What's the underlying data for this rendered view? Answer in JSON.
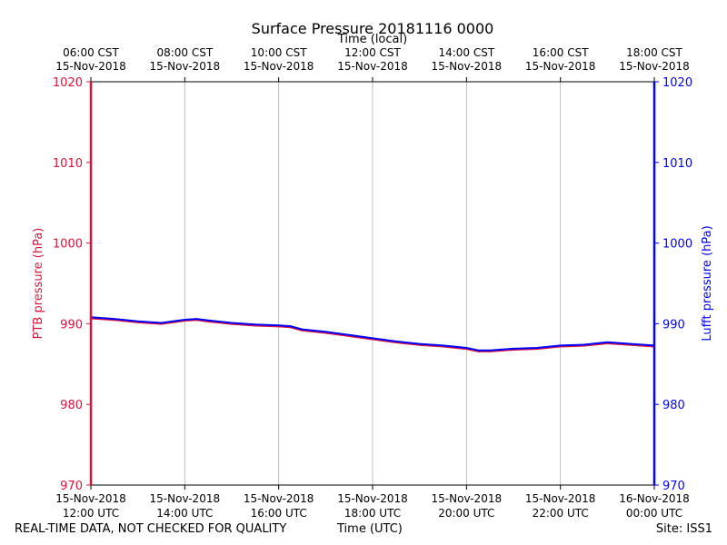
{
  "chart_data": {
    "type": "line",
    "title": "Surface Pressure 20181116 0000",
    "top_xlabel": "Time (local)",
    "xlabel": "Time (UTC)",
    "ylabel_left": "PTB pressure (hPa)",
    "ylabel_right": "Lufft pressure (hPa)",
    "ylim": [
      970,
      1020
    ],
    "xlim_hours": [
      12,
      24
    ],
    "grid": "vertical",
    "yticks": [
      970,
      980,
      990,
      1000,
      1010,
      1020
    ],
    "x_ticks_bottom": [
      {
        "hour": 12,
        "date": "15-Nov-2018",
        "time": "12:00 UTC"
      },
      {
        "hour": 14,
        "date": "15-Nov-2018",
        "time": "14:00 UTC"
      },
      {
        "hour": 16,
        "date": "15-Nov-2018",
        "time": "16:00 UTC"
      },
      {
        "hour": 18,
        "date": "15-Nov-2018",
        "time": "18:00 UTC"
      },
      {
        "hour": 20,
        "date": "15-Nov-2018",
        "time": "20:00 UTC"
      },
      {
        "hour": 22,
        "date": "15-Nov-2018",
        "time": "22:00 UTC"
      },
      {
        "hour": 24,
        "date": "16-Nov-2018",
        "time": "00:00 UTC"
      }
    ],
    "x_ticks_top": [
      {
        "hour": 12,
        "time": "06:00 CST",
        "date": "15-Nov-2018"
      },
      {
        "hour": 14,
        "time": "08:00 CST",
        "date": "15-Nov-2018"
      },
      {
        "hour": 16,
        "time": "10:00 CST",
        "date": "15-Nov-2018"
      },
      {
        "hour": 18,
        "time": "12:00 CST",
        "date": "15-Nov-2018"
      },
      {
        "hour": 20,
        "time": "14:00 CST",
        "date": "15-Nov-2018"
      },
      {
        "hour": 22,
        "time": "16:00 CST",
        "date": "15-Nov-2018"
      },
      {
        "hour": 24,
        "time": "18:00 CST",
        "date": "15-Nov-2018"
      }
    ],
    "series": [
      {
        "name": "PTB pressure",
        "color": "#dc143c",
        "x": [
          12.0,
          12.5,
          13.0,
          13.5,
          14.0,
          14.25,
          14.5,
          15.0,
          15.5,
          16.0,
          16.25,
          16.5,
          17.0,
          17.5,
          18.0,
          18.5,
          19.0,
          19.5,
          20.0,
          20.25,
          20.5,
          21.0,
          21.5,
          22.0,
          22.5,
          23.0,
          23.5,
          24.0
        ],
        "values": [
          990.7,
          990.5,
          990.2,
          990.0,
          990.4,
          990.5,
          990.3,
          990.0,
          989.8,
          989.7,
          989.6,
          989.2,
          988.9,
          988.5,
          988.1,
          987.7,
          987.4,
          987.2,
          986.9,
          986.6,
          986.6,
          986.8,
          986.9,
          987.2,
          987.3,
          987.6,
          987.4,
          987.2
        ]
      },
      {
        "name": "Lufft pressure",
        "color": "#0000ff",
        "x": [
          12.0,
          12.5,
          13.0,
          13.5,
          14.0,
          14.25,
          14.5,
          15.0,
          15.5,
          16.0,
          16.25,
          16.5,
          17.0,
          17.5,
          18.0,
          18.5,
          19.0,
          19.5,
          20.0,
          20.25,
          20.5,
          21.0,
          21.5,
          22.0,
          22.5,
          23.0,
          23.5,
          24.0
        ],
        "values": [
          990.8,
          990.6,
          990.3,
          990.1,
          990.5,
          990.6,
          990.4,
          990.1,
          989.9,
          989.8,
          989.7,
          989.3,
          989.0,
          988.6,
          988.2,
          987.8,
          987.5,
          987.3,
          987.0,
          986.7,
          986.7,
          986.9,
          987.0,
          987.3,
          987.4,
          987.7,
          987.5,
          987.3
        ]
      }
    ],
    "colors": {
      "left_axis": "#dc143c",
      "right_axis": "#0000ff",
      "grid": "#b0b0b0"
    }
  },
  "footer": {
    "left": "REAL-TIME DATA, NOT CHECKED FOR QUALITY",
    "center": "Time (UTC)",
    "right": "Site: ISS1"
  }
}
